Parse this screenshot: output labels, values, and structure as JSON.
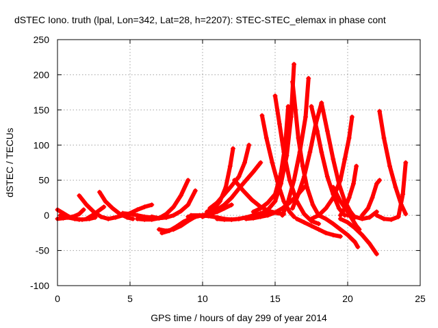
{
  "chart_data": {
    "type": "scatter",
    "title": "dSTEC Iono. truth (lpal, Lon=342, Lat=28, h=2207): STEC-STEC_elemax in phase cont",
    "xlabel": "GPS time / hours of day 299 of year 2014",
    "ylabel": "dSTEC  / TECUs",
    "xlim": [
      0,
      25
    ],
    "ylim": [
      -100,
      250
    ],
    "xticks": [
      0,
      5,
      10,
      15,
      20,
      25
    ],
    "yticks": [
      -100,
      -50,
      0,
      50,
      100,
      150,
      200,
      250
    ],
    "grid": true,
    "color": "#ff0000",
    "marker": "+",
    "series": [
      {
        "x": [
          0.0,
          0.4,
          0.8,
          1.2,
          1.5
        ],
        "y": [
          8,
          3,
          -2,
          -5,
          -6
        ]
      },
      {
        "x": [
          0.0,
          0.4,
          0.8,
          1.2,
          1.5,
          1.8
        ],
        "y": [
          -5,
          -4,
          -3,
          -1,
          2,
          8
        ]
      },
      {
        "x": [
          0.2,
          0.7,
          1.2,
          1.7,
          2.2,
          2.6
        ],
        "y": [
          0,
          -3,
          -5,
          -6,
          -5,
          -3
        ]
      },
      {
        "x": [
          1.5,
          2.0,
          2.5,
          3.0,
          3.5
        ],
        "y": [
          28,
          15,
          5,
          -2,
          -5
        ]
      },
      {
        "x": [
          2.0,
          2.4,
          2.8,
          3.2
        ],
        "y": [
          -5,
          0,
          6,
          12
        ]
      },
      {
        "x": [
          2.9,
          3.3,
          3.8,
          4.3,
          4.8,
          5.2
        ],
        "y": [
          33,
          20,
          10,
          2,
          -3,
          -5
        ]
      },
      {
        "x": [
          3.5,
          4.0,
          4.5,
          5.0,
          5.5,
          6.0,
          6.5
        ],
        "y": [
          -5,
          -3,
          0,
          3,
          8,
          12,
          15
        ]
      },
      {
        "x": [
          4.5,
          5.0,
          5.5,
          6.0,
          6.5,
          7.0,
          7.5
        ],
        "y": [
          3,
          2,
          0,
          -2,
          -3,
          -4,
          -3
        ]
      },
      {
        "x": [
          5.5,
          6.0,
          6.5,
          7.0,
          7.5,
          8.0,
          8.5,
          9.0
        ],
        "y": [
          -5,
          -6,
          -6,
          -4,
          2,
          12,
          28,
          50
        ]
      },
      {
        "x": [
          6.5,
          7.0,
          7.5,
          8.0,
          8.5,
          9.0,
          9.5
        ],
        "y": [
          -2,
          -4,
          -3,
          0,
          6,
          15,
          35
        ]
      },
      {
        "x": [
          7.0,
          7.5,
          8.0,
          8.5,
          9.0,
          9.5,
          10.0,
          10.5
        ],
        "y": [
          -20,
          -22,
          -20,
          -15,
          -8,
          -2,
          0,
          2
        ]
      },
      {
        "x": [
          7.2,
          7.7,
          8.2,
          8.7,
          9.2,
          9.7,
          10.2,
          10.7,
          11.2
        ],
        "y": [
          -25,
          -22,
          -16,
          -9,
          -4,
          -1,
          0,
          3,
          8
        ]
      },
      {
        "x": [
          9.0,
          9.5,
          10.0,
          10.5,
          11.0,
          11.5,
          12.0
        ],
        "y": [
          -2,
          -1,
          0,
          2,
          5,
          10,
          15
        ]
      },
      {
        "x": [
          9.2,
          9.8,
          10.4,
          11.0,
          11.5,
          12.0,
          12.5,
          13.0
        ],
        "y": [
          0,
          0,
          -1,
          -3,
          -5,
          -6,
          -5,
          -3
        ]
      },
      {
        "x": [
          10.3,
          10.8,
          11.2,
          11.6,
          11.9,
          12.1
        ],
        "y": [
          5,
          10,
          20,
          40,
          70,
          95
        ]
      },
      {
        "x": [
          10.5,
          11.0,
          11.5,
          12.0,
          12.5,
          12.9,
          13.2
        ],
        "y": [
          10,
          18,
          30,
          42,
          55,
          75,
          100
        ]
      },
      {
        "x": [
          10.0,
          10.5,
          11.0,
          11.5,
          12.0,
          12.5,
          13.0,
          13.5,
          14.0
        ],
        "y": [
          -2,
          2,
          8,
          15,
          25,
          38,
          50,
          62,
          75
        ]
      },
      {
        "x": [
          11.0,
          11.5,
          12.0,
          12.5,
          13.0,
          13.5,
          14.0,
          14.5
        ],
        "y": [
          -5,
          -6,
          -6,
          -5,
          -3,
          0,
          3,
          5
        ]
      },
      {
        "x": [
          12.2,
          12.8,
          13.4,
          14.0,
          14.6,
          15.2,
          15.6
        ],
        "y": [
          50,
          35,
          22,
          12,
          6,
          3,
          2
        ]
      },
      {
        "x": [
          14.1,
          14.4,
          14.8,
          15.2,
          15.6,
          16.0,
          16.3
        ],
        "y": [
          142,
          110,
          75,
          45,
          20,
          5,
          -2
        ]
      },
      {
        "x": [
          13.0,
          13.5,
          14.0,
          14.5,
          15.0,
          15.5,
          16.0,
          16.5,
          17.0
        ],
        "y": [
          -5,
          -4,
          -2,
          0,
          4,
          10,
          18,
          28,
          40
        ]
      },
      {
        "x": [
          13.5,
          14.0,
          14.5,
          15.0,
          15.4,
          15.7,
          15.9
        ],
        "y": [
          5,
          10,
          18,
          30,
          60,
          100,
          155
        ]
      },
      {
        "x": [
          14.0,
          14.5,
          15.0,
          15.4,
          15.8,
          16.1,
          16.3
        ],
        "y": [
          2,
          8,
          20,
          45,
          85,
          140,
          215
        ]
      },
      {
        "x": [
          15.0,
          15.3,
          15.6,
          16.0,
          16.5,
          17.0,
          17.5,
          18.0
        ],
        "y": [
          170,
          130,
          90,
          50,
          20,
          2,
          -8,
          -12
        ]
      },
      {
        "x": [
          16.2,
          16.4,
          16.6,
          16.9,
          17.2,
          17.6,
          18.0
        ],
        "y": [
          190,
          150,
          110,
          70,
          40,
          15,
          0
        ]
      },
      {
        "x": [
          15.5,
          15.9,
          16.3,
          16.7,
          17.1,
          17.3
        ],
        "y": [
          0,
          20,
          50,
          90,
          140,
          195
        ]
      },
      {
        "x": [
          16.2,
          16.6,
          17.0,
          17.4,
          17.8,
          18.2
        ],
        "y": [
          10,
          30,
          55,
          90,
          130,
          160
        ]
      },
      {
        "x": [
          17.5,
          17.9,
          18.2,
          18.6,
          19.0,
          19.4,
          19.8
        ],
        "y": [
          155,
          120,
          90,
          55,
          30,
          10,
          0
        ]
      },
      {
        "x": [
          18.2,
          18.6,
          19.0,
          19.4,
          19.8,
          20.2,
          20.5
        ],
        "y": [
          160,
          120,
          80,
          45,
          20,
          5,
          -3
        ]
      },
      {
        "x": [
          17.5,
          18.0,
          18.5,
          19.0,
          19.5,
          19.8,
          20.1,
          20.3
        ],
        "y": [
          -5,
          0,
          10,
          25,
          50,
          80,
          110,
          140
        ]
      },
      {
        "x": [
          16.5,
          17.0,
          17.5,
          18.0,
          18.5,
          19.0,
          19.5
        ],
        "y": [
          -5,
          -10,
          -15,
          -20,
          -25,
          -28,
          -30
        ]
      },
      {
        "x": [
          18.0,
          18.5,
          19.0,
          19.5,
          20.0,
          20.5,
          20.7
        ],
        "y": [
          0,
          -5,
          -12,
          -20,
          -28,
          -38,
          -45
        ]
      },
      {
        "x": [
          19.0,
          19.5,
          20.0,
          20.3,
          20.6,
          20.8
        ],
        "y": [
          40,
          20,
          5,
          -5,
          -15,
          -20
        ]
      },
      {
        "x": [
          19.5,
          19.8,
          20.1,
          20.4,
          20.6
        ],
        "y": [
          0,
          10,
          25,
          45,
          70
        ]
      },
      {
        "x": [
          19.5,
          20.0,
          20.5,
          21.0,
          21.5,
          22.0
        ],
        "y": [
          -5,
          -10,
          -18,
          -28,
          -40,
          -55
        ]
      },
      {
        "x": [
          20.0,
          20.5,
          21.0,
          21.5,
          22.0
        ],
        "y": [
          0,
          -2,
          -5,
          -3,
          5
        ]
      },
      {
        "x": [
          21.0,
          21.4,
          21.7,
          22.0,
          22.2
        ],
        "y": [
          0,
          10,
          25,
          45,
          50
        ]
      },
      {
        "x": [
          22.2,
          22.5,
          22.9,
          23.3,
          23.7,
          24.0
        ],
        "y": [
          148,
          110,
          70,
          40,
          15,
          2
        ]
      },
      {
        "x": [
          22.0,
          22.5,
          23.0,
          23.5,
          23.8,
          24.0
        ],
        "y": [
          0,
          -5,
          -6,
          -2,
          30,
          75
        ]
      }
    ]
  }
}
